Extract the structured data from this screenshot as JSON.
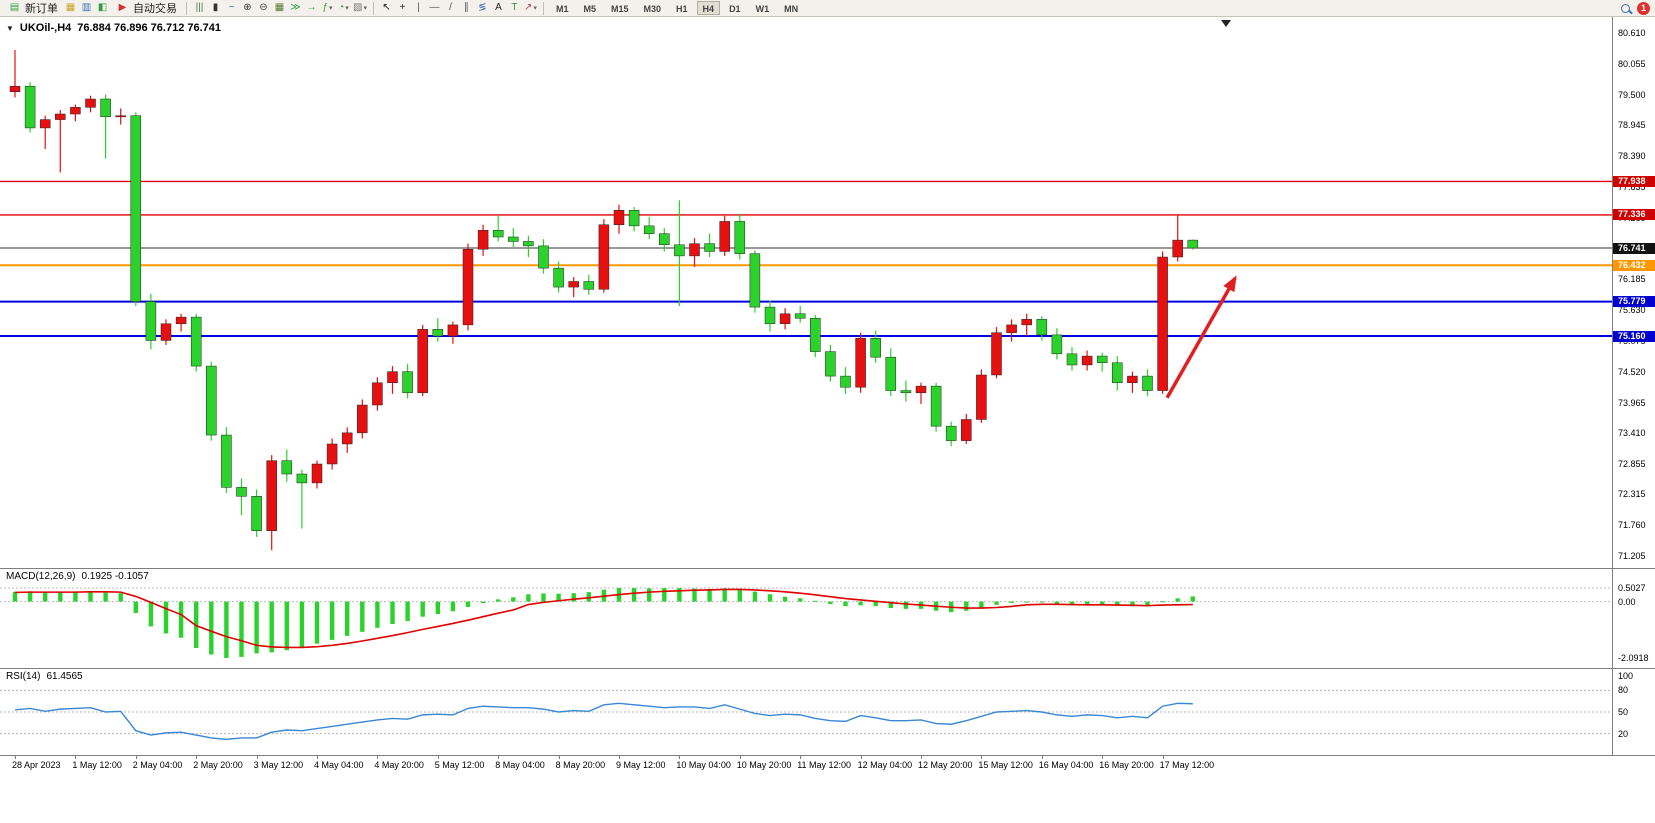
{
  "toolbar": {
    "groups": [
      {
        "type": "button",
        "name": "new-order-button",
        "icon": {
          "name": "new-order-icon",
          "glyph": "▤",
          "color": "#2f9e44"
        },
        "label": "新订单"
      },
      {
        "type": "icons",
        "items": [
          {
            "name": "market-watch-icon",
            "glyph": "▦",
            "color": "#c9a227"
          },
          {
            "name": "data-window-icon",
            "glyph": "▥",
            "color": "#3b6fb5"
          },
          {
            "name": "navigator-icon",
            "glyph": "◧",
            "color": "#2f9e44"
          }
        ]
      },
      {
        "type": "button",
        "name": "auto-trading-button",
        "icon": {
          "name": "auto-trading-icon",
          "glyph": "▶",
          "color": "#d33030"
        },
        "label": "自动交易"
      },
      {
        "type": "sep"
      },
      {
        "type": "icons",
        "items": [
          {
            "name": "bar-chart-icon",
            "glyph": "|||",
            "color": "#4a7a4a"
          },
          {
            "name": "candlestick-chart-icon",
            "glyph": "▮",
            "color": "#333333"
          },
          {
            "name": "line-chart-icon",
            "glyph": "~",
            "color": "#3b6fb5"
          },
          {
            "name": "zoom-in-icon",
            "glyph": "⊕",
            "color": "#444444"
          },
          {
            "name": "zoom-out-icon",
            "glyph": "⊖",
            "color": "#444444"
          },
          {
            "name": "tile-windows-icon",
            "glyph": "▦",
            "color": "#55772a"
          }
        ]
      },
      {
        "type": "icons",
        "items": [
          {
            "name": "auto-scroll-icon",
            "glyph": "≫",
            "color": "#2f9e44"
          },
          {
            "name": "chart-shift-icon",
            "glyph": "→",
            "color": "#2f9e44"
          }
        ]
      },
      {
        "type": "icons",
        "items": [
          {
            "name": "indicators-icon",
            "glyph": "ƒ",
            "color": "#2f9e44",
            "caret": true
          },
          {
            "name": "periods-icon",
            "glyph": "◔",
            "color": "#2f9e44",
            "caret": true
          },
          {
            "name": "templates-icon",
            "glyph": "▧",
            "color": "#777777",
            "caret": true
          }
        ]
      },
      {
        "type": "sep"
      },
      {
        "type": "icons",
        "items": [
          {
            "name": "cursor-icon",
            "glyph": "↖",
            "color": "#222222"
          },
          {
            "name": "crosshair-icon",
            "glyph": "+",
            "color": "#222222"
          }
        ]
      },
      {
        "type": "icons",
        "items": [
          {
            "name": "vertical-line-icon",
            "glyph": "|",
            "color": "#555555"
          },
          {
            "name": "horizontal-line-icon",
            "glyph": "—",
            "color": "#555555"
          },
          {
            "name": "trendline-icon",
            "glyph": "/",
            "color": "#555555"
          },
          {
            "name": "channel-icon",
            "glyph": "∥",
            "color": "#555555"
          },
          {
            "name": "fibonacci-icon",
            "glyph": "≶",
            "color": "#3b6fb5"
          }
        ]
      },
      {
        "type": "icons",
        "items": [
          {
            "name": "text-icon",
            "glyph": "A",
            "color": "#222222"
          },
          {
            "name": "label-icon",
            "glyph": "T",
            "color": "#2f9e44"
          },
          {
            "name": "shapes-icon",
            "glyph": "↗",
            "color": "#cc4444",
            "caret": true
          }
        ]
      },
      {
        "type": "sep"
      },
      {
        "type": "timeframes",
        "items": [
          "M1",
          "M5",
          "M15",
          "M30",
          "H1",
          "H4",
          "D1",
          "W1",
          "MN"
        ],
        "active": "H4"
      }
    ],
    "notification_count": "1"
  },
  "chart": {
    "dropdown_glyph": "▼",
    "symbol_period": "UKOil-,H4",
    "ohlc_text": "76.884 76.896 76.712 76.741",
    "price_axis_labels": [
      "80.610",
      "80.055",
      "79.500",
      "78.945",
      "78.390",
      "77.835",
      "77.280",
      "76.725",
      "76.185",
      "75.630",
      "75.075",
      "74.520",
      "73.965",
      "73.410",
      "72.855",
      "72.315",
      "71.760",
      "71.205"
    ]
  },
  "chart_data": {
    "type": "candlestick",
    "symbol": "UKOil-",
    "period": "H4",
    "ohlc_current": {
      "open": 76.884,
      "high": 76.896,
      "low": 76.712,
      "close": 76.741
    },
    "up_color": "#e61010",
    "down_color": "#2bd22b",
    "candles": [
      [
        79.55,
        80.3,
        79.45,
        79.65
      ],
      [
        79.65,
        79.72,
        78.82,
        78.9
      ],
      [
        78.9,
        79.12,
        78.52,
        79.05
      ],
      [
        79.05,
        79.22,
        78.1,
        79.15
      ],
      [
        79.15,
        79.32,
        79.02,
        79.27
      ],
      [
        79.27,
        79.48,
        79.18,
        79.42
      ],
      [
        79.42,
        79.5,
        78.35,
        79.1
      ],
      [
        79.1,
        79.25,
        78.96,
        79.12
      ],
      [
        79.12,
        79.18,
        75.7,
        75.78
      ],
      [
        75.78,
        75.92,
        74.92,
        75.08
      ],
      [
        75.08,
        75.46,
        75.0,
        75.38
      ],
      [
        75.38,
        75.56,
        75.24,
        75.5
      ],
      [
        75.5,
        75.56,
        74.52,
        74.62
      ],
      [
        74.62,
        74.7,
        73.28,
        73.38
      ],
      [
        73.38,
        73.52,
        72.34,
        72.44
      ],
      [
        72.44,
        72.6,
        71.94,
        72.28
      ],
      [
        72.28,
        72.4,
        71.55,
        71.66
      ],
      [
        71.66,
        73.02,
        71.31,
        72.92
      ],
      [
        72.92,
        73.12,
        72.54,
        72.68
      ],
      [
        72.68,
        72.76,
        71.7,
        72.52
      ],
      [
        72.52,
        72.92,
        72.42,
        72.86
      ],
      [
        72.86,
        73.32,
        72.76,
        73.22
      ],
      [
        73.22,
        73.52,
        73.06,
        73.42
      ],
      [
        73.42,
        74.02,
        73.32,
        73.92
      ],
      [
        73.92,
        74.42,
        73.82,
        74.32
      ],
      [
        74.32,
        74.62,
        74.12,
        74.52
      ],
      [
        74.52,
        74.66,
        74.04,
        74.14
      ],
      [
        74.14,
        75.36,
        74.08,
        75.28
      ],
      [
        75.28,
        75.48,
        75.06,
        75.16
      ],
      [
        75.16,
        75.42,
        75.02,
        75.36
      ],
      [
        75.36,
        76.82,
        75.26,
        76.72
      ],
      [
        76.72,
        77.16,
        76.6,
        77.06
      ],
      [
        77.06,
        77.32,
        76.86,
        76.94
      ],
      [
        76.94,
        77.1,
        76.76,
        76.86
      ],
      [
        76.86,
        76.96,
        76.58,
        76.78
      ],
      [
        76.78,
        76.9,
        76.28,
        76.38
      ],
      [
        76.38,
        76.5,
        75.94,
        76.04
      ],
      [
        76.04,
        76.22,
        75.86,
        76.14
      ],
      [
        76.14,
        76.26,
        75.9,
        76.0
      ],
      [
        76.0,
        77.26,
        75.94,
        77.16
      ],
      [
        77.16,
        77.52,
        77.0,
        77.42
      ],
      [
        77.42,
        77.48,
        77.04,
        77.14
      ],
      [
        77.14,
        77.3,
        76.9,
        77.0
      ],
      [
        77.0,
        77.1,
        76.68,
        76.8
      ],
      [
        76.8,
        77.6,
        75.7,
        76.6
      ],
      [
        76.6,
        76.92,
        76.4,
        76.82
      ],
      [
        76.82,
        77.0,
        76.58,
        76.68
      ],
      [
        76.68,
        77.32,
        76.6,
        77.22
      ],
      [
        77.22,
        77.36,
        76.54,
        76.64
      ],
      [
        76.64,
        76.7,
        75.58,
        75.68
      ],
      [
        75.68,
        75.8,
        75.24,
        75.38
      ],
      [
        75.38,
        75.66,
        75.28,
        75.56
      ],
      [
        75.56,
        75.7,
        75.4,
        75.48
      ],
      [
        75.48,
        75.54,
        74.78,
        74.88
      ],
      [
        74.88,
        75.0,
        74.34,
        74.44
      ],
      [
        74.44,
        74.6,
        74.12,
        74.24
      ],
      [
        74.24,
        75.22,
        74.14,
        75.12
      ],
      [
        75.12,
        75.26,
        74.68,
        74.78
      ],
      [
        74.78,
        74.94,
        74.08,
        74.18
      ],
      [
        74.18,
        74.36,
        73.98,
        74.14
      ],
      [
        74.14,
        74.32,
        73.94,
        74.26
      ],
      [
        74.26,
        74.32,
        73.44,
        73.54
      ],
      [
        73.54,
        73.62,
        73.18,
        73.28
      ],
      [
        73.28,
        73.76,
        73.22,
        73.66
      ],
      [
        73.66,
        74.56,
        73.6,
        74.46
      ],
      [
        74.46,
        75.32,
        74.4,
        75.22
      ],
      [
        75.22,
        75.46,
        75.06,
        75.36
      ],
      [
        75.36,
        75.56,
        75.16,
        75.46
      ],
      [
        75.46,
        75.52,
        75.08,
        75.18
      ],
      [
        75.18,
        75.3,
        74.74,
        74.84
      ],
      [
        74.84,
        74.96,
        74.54,
        74.64
      ],
      [
        74.64,
        74.9,
        74.54,
        74.8
      ],
      [
        74.8,
        74.86,
        74.52,
        74.68
      ],
      [
        74.68,
        74.8,
        74.18,
        74.32
      ],
      [
        74.32,
        74.52,
        74.14,
        74.44
      ],
      [
        74.44,
        74.56,
        74.08,
        74.18
      ],
      [
        74.18,
        76.68,
        74.12,
        76.58
      ],
      [
        76.58,
        77.33,
        76.5,
        76.884
      ],
      [
        76.884,
        76.896,
        76.712,
        76.741
      ]
    ],
    "levels": [
      {
        "price": 77.938,
        "label": "77.938",
        "color": "#e00000",
        "tag_bg": "#cf0000",
        "width": 1.4
      },
      {
        "price": 77.336,
        "label": "77.336",
        "color": "#e00000",
        "tag_bg": "#cf0000",
        "width": 1.4
      },
      {
        "price": 76.432,
        "label": "76.432",
        "color": "#ff9800",
        "tag_bg": "#ff9800",
        "width": 2
      },
      {
        "price": 75.779,
        "label": "75.779",
        "color": "#0000e0",
        "tag_bg": "#0000cf",
        "width": 2
      },
      {
        "price": 75.16,
        "label": "75.160",
        "color": "#0000e0",
        "tag_bg": "#0000cf",
        "width": 2
      }
    ],
    "bid_line": {
      "price": 76.741,
      "label": "76.741",
      "color": "#333333",
      "tag_bg": "#111111",
      "width": 1
    },
    "time_labels": [
      "28 Apr 2023",
      "1 May 12:00",
      "2 May 04:00",
      "2 May 20:00",
      "3 May 12:00",
      "4 May 04:00",
      "4 May 20:00",
      "5 May 12:00",
      "8 May 04:00",
      "8 May 20:00",
      "9 May 12:00",
      "10 May 04:00",
      "10 May 20:00",
      "11 May 12:00",
      "12 May 04:00",
      "12 May 20:00",
      "15 May 12:00",
      "16 May 04:00",
      "16 May 20:00",
      "17 May 12:00"
    ],
    "indicators": {
      "macd": {
        "label": "MACD(12,26,9)",
        "values_text": "0.1925 -0.1057",
        "hist_color": "#2bd22b",
        "signal_color": "#e00000",
        "axis_labels": [
          {
            "text": "0.5027",
            "value": 0.5027
          },
          {
            "text": "0.00",
            "value": 0
          },
          {
            "text": "-2.0918",
            "value": -2.0918
          }
        ],
        "level_values": [
          0.5027,
          0
        ],
        "histogram": [
          0.36,
          0.38,
          0.36,
          0.35,
          0.36,
          0.36,
          0.33,
          0.31,
          -0.42,
          -0.92,
          -1.18,
          -1.34,
          -1.72,
          -1.96,
          -2.09,
          -2.05,
          -1.92,
          -1.88,
          -1.8,
          -1.7,
          -1.56,
          -1.42,
          -1.27,
          -1.12,
          -0.97,
          -0.83,
          -0.72,
          -0.56,
          -0.46,
          -0.36,
          -0.2,
          -0.06,
          0.08,
          0.16,
          0.27,
          0.3,
          0.29,
          0.31,
          0.35,
          0.44,
          0.5,
          0.5,
          0.49,
          0.5,
          0.5,
          0.48,
          0.47,
          0.49,
          0.46,
          0.37,
          0.27,
          0.18,
          0.12,
          0.03,
          -0.09,
          -0.17,
          -0.14,
          -0.17,
          -0.24,
          -0.27,
          -0.27,
          -0.34,
          -0.39,
          -0.34,
          -0.24,
          -0.12,
          -0.05,
          0,
          -0.03,
          -0.09,
          -0.14,
          -0.15,
          -0.13,
          -0.15,
          -0.17,
          -0.18,
          0.01,
          0.12,
          0.19
        ],
        "signal": [
          0.34,
          0.35,
          0.35,
          0.35,
          0.35,
          0.36,
          0.36,
          0.35,
          0.19,
          -0.03,
          -0.26,
          -0.48,
          -0.89,
          -1.1,
          -1.3,
          -1.45,
          -1.62,
          -1.68,
          -1.7,
          -1.7,
          -1.67,
          -1.62,
          -1.55,
          -1.46,
          -1.36,
          -1.26,
          -1.15,
          -1.03,
          -0.92,
          -0.81,
          -0.69,
          -0.56,
          -0.43,
          -0.31,
          -0.11,
          -0.03,
          0.03,
          0.09,
          0.14,
          0.2,
          0.26,
          0.31,
          0.35,
          0.38,
          0.4,
          0.42,
          0.43,
          0.45,
          0.45,
          0.43,
          0.4,
          0.36,
          0.31,
          0.25,
          0.18,
          0.11,
          0.06,
          0.01,
          -0.04,
          -0.09,
          -0.13,
          -0.17,
          -0.21,
          -0.24,
          -0.24,
          -0.22,
          -0.18,
          -0.12,
          -0.1,
          -0.1,
          -0.11,
          -0.12,
          -0.12,
          -0.13,
          -0.14,
          -0.15,
          -0.13,
          -0.12,
          -0.11
        ]
      },
      "rsi": {
        "label": "RSI(14)",
        "value_text": "61.4565",
        "line_color": "#3a87d4",
        "axis_labels": [
          {
            "text": "100",
            "value": 100
          },
          {
            "text": "80",
            "value": 80
          },
          {
            "text": "50",
            "value": 50
          },
          {
            "text": "20",
            "value": 20
          }
        ],
        "level_values": [
          80,
          50,
          20
        ],
        "values": [
          53,
          55,
          51,
          54,
          55,
          56,
          50,
          51,
          24,
          18,
          21,
          22,
          18,
          14,
          12,
          14,
          14,
          22,
          25,
          24,
          27,
          30,
          33,
          36,
          39,
          41,
          40,
          46,
          47,
          46,
          55,
          58,
          57,
          56,
          56,
          54,
          50,
          52,
          51,
          60,
          62,
          60,
          58,
          56,
          57,
          57,
          55,
          60,
          54,
          48,
          45,
          47,
          46,
          41,
          38,
          37,
          45,
          42,
          38,
          38,
          39,
          34,
          33,
          38,
          44,
          50,
          51,
          52,
          50,
          46,
          44,
          46,
          45,
          42,
          44,
          42,
          58,
          62,
          61.46
        ]
      }
    },
    "annotation_arrow": {
      "from_index": 76.3,
      "from_price": 74.05,
      "to_index": 80.8,
      "to_price": 76.2,
      "color": "#e02020"
    },
    "shift_marker_index": 80.2,
    "shift_marker_glyph": "▼"
  }
}
